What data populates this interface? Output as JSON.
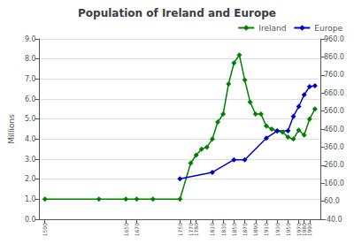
{
  "chart_data": {
    "type": "line",
    "title": "Population of Ireland and Europe",
    "ylabel": "Millions",
    "xlim": [
      1490,
      2010
    ],
    "xticks": [
      1500,
      1650,
      1670,
      1750,
      1770,
      1780,
      1810,
      1830,
      1850,
      1870,
      1890,
      1910,
      1930,
      1950,
      1970,
      1980,
      1990
    ],
    "ylim": [
      0.0,
      9.0
    ],
    "yticks": [
      {
        "value": 0.0,
        "label": "0.0"
      },
      {
        "value": 1.0,
        "label": "1.0"
      },
      {
        "value": 2.0,
        "label": "2.0"
      },
      {
        "value": 3.0,
        "label": "3.0"
      },
      {
        "value": 4.0,
        "label": "4.0"
      },
      {
        "value": 5.0,
        "label": "5.0"
      },
      {
        "value": 6.0,
        "label": "6.0"
      },
      {
        "value": 7.0,
        "label": "7.0"
      },
      {
        "value": 8.0,
        "label": "8.0"
      },
      {
        "value": 9.0,
        "label": "9.0"
      }
    ],
    "y2lim": [
      -40.0,
      960.0
    ],
    "y2ticks": [
      {
        "value": -40.0,
        "label": "-40.0"
      },
      {
        "value": 60.0,
        "label": "60.0"
      },
      {
        "value": 160.0,
        "label": "160.0"
      },
      {
        "value": 260.0,
        "label": "260.0"
      },
      {
        "value": 360.0,
        "label": "360.0"
      },
      {
        "value": 460.0,
        "label": "460.0"
      },
      {
        "value": 560.0,
        "label": "560.0"
      },
      {
        "value": 660.0,
        "label": "660.0"
      },
      {
        "value": 760.0,
        "label": "760.0"
      },
      {
        "value": 860.0,
        "label": "860.0"
      },
      {
        "value": 960.0,
        "label": "960.0"
      }
    ],
    "grid": true,
    "legend": "upper right",
    "marker": "diamond",
    "series": [
      {
        "name": "Ireland",
        "color": "#008000",
        "x": [
          1500,
          1600,
          1650,
          1670,
          1700,
          1750,
          1770,
          1780,
          1790,
          1800,
          1810,
          1820,
          1830,
          1840,
          1850,
          1860,
          1870,
          1880,
          1890,
          1900,
          1910,
          1920,
          1930,
          1940,
          1950,
          1960,
          1970,
          1980,
          1990,
          2000
        ],
        "values": [
          1.0,
          1.0,
          1.0,
          1.0,
          1.0,
          1.0,
          2.8,
          3.2,
          3.5,
          3.6,
          4.0,
          4.85,
          5.25,
          6.75,
          7.8,
          8.2,
          6.95,
          5.85,
          5.25,
          5.25,
          4.65,
          4.5,
          4.4,
          4.35,
          4.1,
          4.0,
          4.45,
          4.2,
          5.0,
          5.5
        ]
      },
      {
        "name": "Europe",
        "color": "#0000cc",
        "axis": "y2",
        "x": [
          1750,
          1810,
          1850,
          1870,
          1910,
          1930,
          1950,
          1960,
          1970,
          1980,
          1990,
          2000
        ],
        "values": [
          184.0,
          220.0,
          290.0,
          290.0,
          410.0,
          450.0,
          450.0,
          530.0,
          585.0,
          650.0,
          695.0,
          700.0
        ]
      }
    ]
  }
}
